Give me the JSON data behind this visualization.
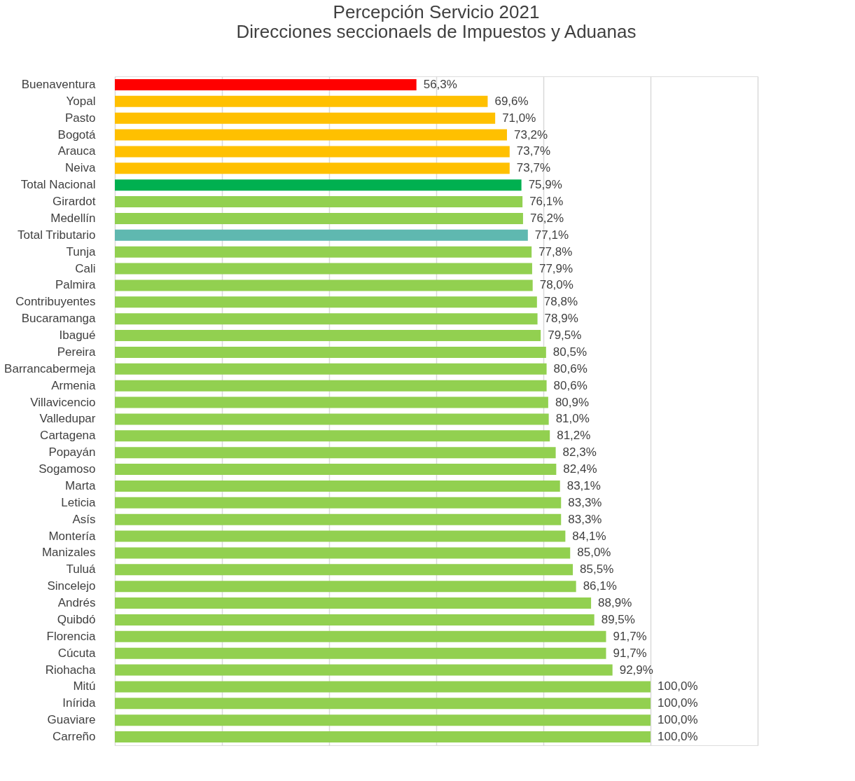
{
  "chart_data": {
    "type": "bar",
    "orientation": "horizontal",
    "title": "Percepción Servicio  2021\nDirecciones seccionaels de Impuestos y Aduanas",
    "categories": [
      "Buenaventura",
      "Yopal",
      "Pasto",
      "Bogotá",
      "Arauca",
      "Neiva",
      "Total Nacional",
      "Girardot",
      "Medellín",
      "Total Tributario",
      "Tunja",
      "Cali",
      "Palmira",
      "Contribuyentes",
      "Bucaramanga",
      "Ibagué",
      "Pereira",
      "Barrancabermeja",
      "Armenia",
      "Villavicencio",
      "Valledupar",
      "Cartagena",
      "Popayán",
      "Sogamoso",
      "Marta",
      "Leticia",
      "Asís",
      "Montería",
      "Manizales",
      "Tuluá",
      "Sincelejo",
      "Andrés",
      "Quibdó",
      "Florencia",
      "Cúcuta",
      "Riohacha",
      "Mitú",
      "Inírida",
      "Guaviare",
      "Carreño"
    ],
    "values": [
      56.3,
      69.6,
      71.0,
      73.2,
      73.7,
      73.7,
      75.9,
      76.1,
      76.2,
      77.1,
      77.8,
      77.9,
      78.0,
      78.8,
      78.9,
      79.5,
      80.5,
      80.6,
      80.6,
      80.9,
      81.0,
      81.2,
      82.3,
      82.4,
      83.1,
      83.3,
      83.3,
      84.1,
      85.0,
      85.5,
      86.1,
      88.9,
      89.5,
      91.7,
      91.7,
      92.9,
      100.0,
      100.0,
      100.0,
      100.0
    ],
    "value_labels": [
      "56,3%",
      "69,6%",
      "71,0%",
      "73,2%",
      "73,7%",
      "73,7%",
      "75,9%",
      "76,1%",
      "76,2%",
      "77,1%",
      "77,8%",
      "77,9%",
      "78,0%",
      "78,8%",
      "78,9%",
      "79,5%",
      "80,5%",
      "80,6%",
      "80,6%",
      "80,9%",
      "81,0%",
      "81,2%",
      "82,3%",
      "82,4%",
      "83,1%",
      "83,3%",
      "83,3%",
      "84,1%",
      "85,0%",
      "85,5%",
      "86,1%",
      "88,9%",
      "89,5%",
      "91,7%",
      "91,7%",
      "92,9%",
      "100,0%",
      "100,0%",
      "100,0%",
      "100,0%"
    ],
    "colors": [
      "#ff0000",
      "#ffc000",
      "#ffc000",
      "#ffc000",
      "#ffc000",
      "#ffc000",
      "#00b050",
      "#92d050",
      "#92d050",
      "#5fb8b0",
      "#92d050",
      "#92d050",
      "#92d050",
      "#92d050",
      "#92d050",
      "#92d050",
      "#92d050",
      "#92d050",
      "#92d050",
      "#92d050",
      "#92d050",
      "#92d050",
      "#92d050",
      "#92d050",
      "#92d050",
      "#92d050",
      "#92d050",
      "#92d050",
      "#92d050",
      "#92d050",
      "#92d050",
      "#92d050",
      "#92d050",
      "#92d050",
      "#92d050",
      "#92d050",
      "#92d050",
      "#92d050",
      "#92d050",
      "#92d050"
    ],
    "xlim": [
      0,
      120
    ],
    "xticks": [
      {
        "value": 0,
        "label": null
      },
      {
        "value": 20,
        "label": null
      },
      {
        "value": 40,
        "label": null
      },
      {
        "value": 60,
        "label": null
      },
      {
        "value": 80,
        "label": null
      },
      {
        "value": 100,
        "label": null
      },
      {
        "value": 120,
        "label": null
      }
    ],
    "grid": "x",
    "tick_labels": "y"
  }
}
